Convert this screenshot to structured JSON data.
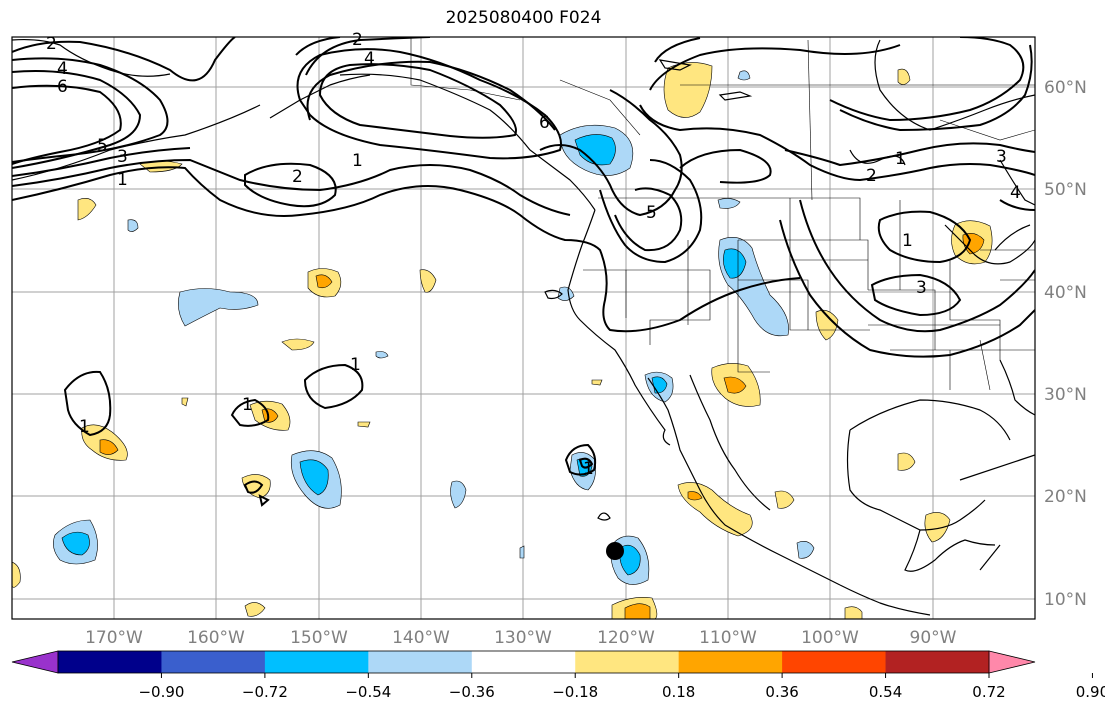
{
  "title": "2025080400 F024",
  "lon_labels": [
    "170°W",
    "160°W",
    "150°W",
    "140°W",
    "130°W",
    "120°W",
    "110°W",
    "100°W",
    "90°W"
  ],
  "lat_labels": [
    "60°N",
    "50°N",
    "40°N",
    "30°N",
    "20°N",
    "10°N"
  ],
  "colorbar": {
    "colors": [
      "#9932cc",
      "#00008b",
      "#3a5fcd",
      "#00bfff",
      "#add8f7",
      "#ffffff",
      "#ffe680",
      "#ffa500",
      "#ff4500",
      "#b22222",
      "#ff88aa"
    ],
    "ticks": [
      "−0.90",
      "−0.72",
      "−0.54",
      "−0.36",
      "−0.18",
      "0.18",
      "0.36",
      "0.54",
      "0.72",
      "0.90"
    ]
  },
  "map": {
    "extent": {
      "lon": [
        -180,
        -80
      ],
      "lat": [
        8,
        66
      ]
    },
    "contour_labels": [
      "2",
      "2",
      "4",
      "6",
      "5",
      "3",
      "1",
      "4",
      "6",
      "2",
      "1",
      "2",
      "1",
      "3",
      "4",
      "5",
      "3",
      "1",
      "1",
      "1",
      "1",
      "1"
    ]
  }
}
